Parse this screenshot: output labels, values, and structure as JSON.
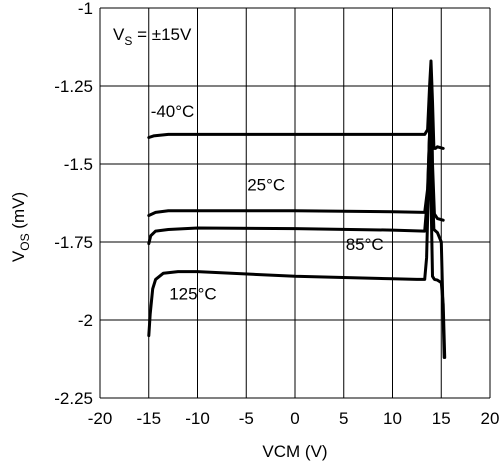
{
  "chart_data": {
    "type": "line",
    "title": "",
    "xlabel": "VCM (V)",
    "ylabel_main": "V",
    "ylabel_sub": "OS",
    "ylabel_unit": " (mV)",
    "xlim": [
      -20,
      20
    ],
    "ylim": [
      -2.25,
      -1
    ],
    "xticks": [
      -20,
      -15,
      -10,
      -5,
      0,
      5,
      10,
      15,
      20
    ],
    "yticks": [
      -1,
      -1.25,
      -1.5,
      -1.75,
      -2,
      -2.25
    ],
    "ytick_labels": [
      "-1",
      "-1.25",
      "-1.5",
      "-1.75",
      "-2",
      "-2.25"
    ],
    "grid": true,
    "legend_box": {
      "main": "V",
      "sub": "S",
      "rest": " = ±15V"
    },
    "series": [
      {
        "name": "-40°C",
        "points": [
          [
            -15,
            -1.415
          ],
          [
            -14.5,
            -1.41
          ],
          [
            -13,
            -1.405
          ],
          [
            -10,
            -1.405
          ],
          [
            0,
            -1.405
          ],
          [
            10,
            -1.405
          ],
          [
            13.3,
            -1.405
          ],
          [
            13.6,
            -1.39
          ],
          [
            13.8,
            -1.25
          ],
          [
            13.95,
            -1.17
          ],
          [
            14.1,
            -1.3
          ],
          [
            14.25,
            -1.45
          ],
          [
            14.4,
            -1.45
          ],
          [
            14.6,
            -1.445
          ],
          [
            15.2,
            -1.45
          ]
        ]
      },
      {
        "name": "25°C",
        "points": [
          [
            -15,
            -1.665
          ],
          [
            -14.3,
            -1.655
          ],
          [
            -13,
            -1.65
          ],
          [
            -10,
            -1.65
          ],
          [
            0,
            -1.65
          ],
          [
            10,
            -1.653
          ],
          [
            13.3,
            -1.655
          ],
          [
            13.6,
            -1.58
          ],
          [
            13.8,
            -1.4
          ],
          [
            13.9,
            -1.22
          ],
          [
            14.0,
            -1.3
          ],
          [
            14.1,
            -1.5
          ],
          [
            14.3,
            -1.66
          ],
          [
            14.6,
            -1.675
          ],
          [
            15.2,
            -1.68
          ]
        ]
      },
      {
        "name": "85°C",
        "points": [
          [
            -15,
            -1.755
          ],
          [
            -14.8,
            -1.73
          ],
          [
            -14.3,
            -1.715
          ],
          [
            -13,
            -1.71
          ],
          [
            -10,
            -1.705
          ],
          [
            0,
            -1.707
          ],
          [
            10,
            -1.712
          ],
          [
            13.3,
            -1.715
          ],
          [
            13.6,
            -1.6
          ],
          [
            13.8,
            -1.4
          ],
          [
            13.9,
            -1.35
          ],
          [
            14.05,
            -1.55
          ],
          [
            14.25,
            -1.71
          ],
          [
            14.6,
            -1.72
          ],
          [
            15.0,
            -1.75
          ],
          [
            15.3,
            -2.12
          ]
        ]
      },
      {
        "name": "125°C",
        "points": [
          [
            -15,
            -2.05
          ],
          [
            -14.85,
            -1.98
          ],
          [
            -14.6,
            -1.9
          ],
          [
            -14.3,
            -1.87
          ],
          [
            -13.5,
            -1.85
          ],
          [
            -12,
            -1.845
          ],
          [
            -10,
            -1.845
          ],
          [
            0,
            -1.86
          ],
          [
            10,
            -1.868
          ],
          [
            12.5,
            -1.87
          ],
          [
            13.3,
            -1.87
          ],
          [
            13.5,
            -1.8
          ],
          [
            13.7,
            -1.55
          ],
          [
            13.8,
            -1.4
          ],
          [
            13.95,
            -1.6
          ],
          [
            14.1,
            -1.86
          ],
          [
            14.3,
            -1.87
          ],
          [
            14.6,
            -1.872
          ],
          [
            15.0,
            -1.88
          ],
          [
            15.2,
            -1.95
          ],
          [
            15.35,
            -2.12
          ]
        ]
      }
    ],
    "annotations": [
      {
        "text": "-40°C",
        "x": -14.8,
        "y": -1.35
      },
      {
        "text": "25°C",
        "x": -4.9,
        "y": -1.585
      },
      {
        "text": "85°C",
        "x": 5.2,
        "y": -1.775
      },
      {
        "text": "125°C",
        "x": -12.9,
        "y": -1.935
      }
    ]
  }
}
